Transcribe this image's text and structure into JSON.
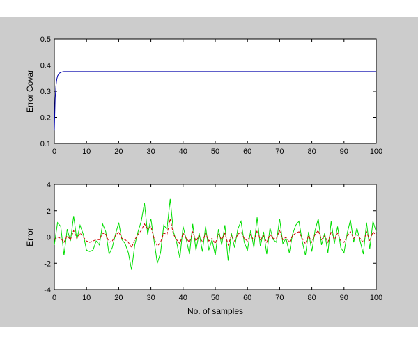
{
  "chart_data": [
    {
      "type": "line",
      "title": "",
      "xlabel": "",
      "ylabel": "Error Covar",
      "xlim": [
        0,
        100
      ],
      "ylim": [
        0.1,
        0.5
      ],
      "xticks": [
        0,
        10,
        20,
        30,
        40,
        50,
        60,
        70,
        80,
        90,
        100
      ],
      "yticks": [
        0.1,
        0.2,
        0.3,
        0.4,
        0.5
      ],
      "xtick_labels": [
        "0",
        "10",
        "20",
        "30",
        "40",
        "50",
        "60",
        "70",
        "80",
        "90",
        "100"
      ],
      "ytick_labels": [
        "0.1",
        "0.2",
        "0.3",
        "0.4",
        "0.5"
      ],
      "grid": false,
      "series": [
        {
          "color": "#0000aa",
          "x": [
            0,
            0.25,
            0.5,
            0.75,
            1,
            1.5,
            2,
            2.5,
            3,
            4,
            5,
            10,
            20,
            30,
            40,
            50,
            60,
            70,
            80,
            90,
            100
          ],
          "y": [
            0.15,
            0.27,
            0.32,
            0.345,
            0.358,
            0.368,
            0.372,
            0.374,
            0.375,
            0.375,
            0.375,
            0.375,
            0.375,
            0.375,
            0.375,
            0.375,
            0.375,
            0.375,
            0.375,
            0.375,
            0.375
          ]
        }
      ]
    },
    {
      "type": "line",
      "title": "",
      "xlabel": "No. of samples",
      "ylabel": "Error",
      "xlim": [
        0,
        100
      ],
      "ylim": [
        -4,
        4
      ],
      "xticks": [
        0,
        10,
        20,
        30,
        40,
        50,
        60,
        70,
        80,
        90,
        100
      ],
      "yticks": [
        -4,
        -2,
        0,
        2,
        4
      ],
      "xtick_labels": [
        "0",
        "10",
        "20",
        "30",
        "40",
        "50",
        "60",
        "70",
        "80",
        "90",
        "100"
      ],
      "ytick_labels": [
        "-4",
        "-2",
        "0",
        "2",
        "4"
      ],
      "grid": false,
      "series": [
        {
          "color": "#00dd00",
          "x": [
            0,
            1,
            2,
            3,
            4,
            5,
            6,
            7,
            8,
            9,
            10,
            11,
            12,
            13,
            14,
            15,
            16,
            17,
            18,
            19,
            20,
            21,
            22,
            23,
            24,
            25,
            26,
            27,
            28,
            29,
            30,
            31,
            32,
            33,
            34,
            35,
            36,
            37,
            38,
            39,
            40,
            41,
            42,
            43,
            44,
            45,
            46,
            47,
            48,
            49,
            50,
            51,
            52,
            53,
            54,
            55,
            56,
            57,
            58,
            59,
            60,
            61,
            62,
            63,
            64,
            65,
            66,
            67,
            68,
            69,
            70,
            71,
            72,
            73,
            74,
            75,
            76,
            77,
            78,
            79,
            80,
            81,
            82,
            83,
            84,
            85,
            86,
            87,
            88,
            89,
            90,
            91,
            92,
            93,
            94,
            95,
            96,
            97,
            98,
            99,
            100
          ],
          "y": [
            -0.6,
            1.1,
            0.8,
            -1.4,
            0.6,
            -0.3,
            1.6,
            -0.2,
            0.9,
            0.2,
            -1.0,
            -1.1,
            -1.0,
            -0.3,
            -0.6,
            1.0,
            0.4,
            -1.3,
            -0.8,
            0.2,
            1.1,
            -0.2,
            -0.5,
            -1.2,
            -2.5,
            -0.6,
            0.4,
            1.2,
            2.6,
            0.2,
            1.4,
            -0.3,
            -2.0,
            -1.2,
            0.9,
            0.6,
            2.9,
            0.4,
            -0.4,
            -1.6,
            0.8,
            -0.2,
            -1.3,
            1.0,
            -1.0,
            0.3,
            -1.1,
            0.8,
            -1.0,
            -0.2,
            -1.4,
            0.6,
            -0.6,
            0.9,
            -1.8,
            0.3,
            -0.8,
            0.6,
            1.2,
            -0.4,
            -1.0,
            0.5,
            -0.8,
            1.5,
            -0.7,
            0.4,
            -1.3,
            0.7,
            -0.2,
            -0.4,
            1.4,
            -0.5,
            -0.1,
            -1.2,
            0.2,
            0.9,
            1.2,
            -0.3,
            -1.4,
            0.4,
            -1.1,
            0.5,
            1.4,
            -0.6,
            0.3,
            -1.2,
            1.2,
            -0.5,
            0.8,
            -0.8,
            -1.2,
            0.3,
            1.3,
            -0.4,
            0.7,
            -0.3,
            -1.3,
            1.1,
            -0.9,
            1.2,
            0.4
          ]
        },
        {
          "color": "#cc0000",
          "style": "dashed",
          "x": [
            0,
            1,
            2,
            3,
            4,
            5,
            6,
            7,
            8,
            9,
            10,
            11,
            12,
            13,
            14,
            15,
            16,
            17,
            18,
            19,
            20,
            21,
            22,
            23,
            24,
            25,
            26,
            27,
            28,
            29,
            30,
            31,
            32,
            33,
            34,
            35,
            36,
            37,
            38,
            39,
            40,
            41,
            42,
            43,
            44,
            45,
            46,
            47,
            48,
            49,
            50,
            51,
            52,
            53,
            54,
            55,
            56,
            57,
            58,
            59,
            60,
            61,
            62,
            63,
            64,
            65,
            66,
            67,
            68,
            69,
            70,
            71,
            72,
            73,
            74,
            75,
            76,
            77,
            78,
            79,
            80,
            81,
            82,
            83,
            84,
            85,
            86,
            87,
            88,
            89,
            90,
            91,
            92,
            93,
            94,
            95,
            96,
            97,
            98,
            99,
            100
          ],
          "y": [
            -0.2,
            0.0,
            -0.1,
            -0.4,
            0.1,
            -0.2,
            0.5,
            -0.1,
            0.3,
            0.0,
            -0.3,
            -0.4,
            -0.3,
            -0.2,
            -0.2,
            0.3,
            0.2,
            -0.4,
            -0.3,
            0.1,
            0.4,
            -0.1,
            -0.2,
            -0.4,
            -0.8,
            -0.2,
            0.2,
            0.5,
            1.0,
            0.6,
            0.8,
            -0.1,
            -0.7,
            -0.4,
            0.3,
            0.2,
            1.4,
            0.2,
            -0.2,
            -0.5,
            0.3,
            -0.1,
            -0.4,
            0.4,
            -0.3,
            0.1,
            -0.4,
            0.3,
            -0.3,
            -0.1,
            -0.5,
            0.2,
            -0.2,
            0.3,
            -0.6,
            0.1,
            -0.3,
            0.2,
            0.4,
            -0.1,
            -0.3,
            0.2,
            -0.3,
            0.5,
            -0.2,
            0.1,
            -0.4,
            0.2,
            -0.1,
            -0.1,
            0.5,
            -0.2,
            0.0,
            -0.4,
            0.1,
            0.3,
            0.4,
            -0.1,
            -0.5,
            0.1,
            -0.4,
            0.2,
            0.5,
            -0.2,
            0.1,
            -0.4,
            0.4,
            -0.2,
            0.3,
            -0.3,
            -0.4,
            0.1,
            0.4,
            -0.1,
            0.2,
            -0.1,
            -0.4,
            0.4,
            -0.3,
            0.4,
            0.1
          ]
        }
      ]
    }
  ]
}
